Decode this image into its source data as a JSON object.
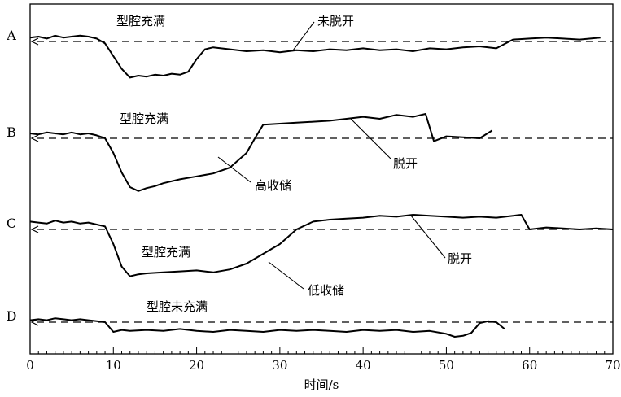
{
  "chart_data": {
    "type": "line",
    "xlabel": "时间/s",
    "xlim": [
      0,
      70
    ],
    "x_ticks": [
      "0",
      "10",
      "20",
      "30",
      "40",
      "50",
      "60",
      "70"
    ],
    "grid": false,
    "series": [
      {
        "name": "A",
        "x": [
          0,
          1,
          2,
          3,
          4,
          5,
          6,
          7,
          8,
          9,
          10,
          11,
          12,
          13,
          14,
          15,
          16,
          17,
          18,
          19,
          20,
          21,
          22,
          24,
          26,
          28,
          30,
          32,
          34,
          36,
          38,
          40,
          42,
          44,
          46,
          48,
          50,
          52,
          54,
          56,
          58,
          60,
          62,
          64,
          66,
          68.5
        ],
        "y": [
          0.4,
          0.5,
          0.3,
          0.6,
          0.4,
          0.5,
          0.6,
          0.5,
          0.3,
          -0.2,
          -1.5,
          -2.8,
          -3.7,
          -3.5,
          -3.6,
          -3.4,
          -3.5,
          -3.3,
          -3.4,
          -3.1,
          -1.8,
          -0.8,
          -0.6,
          -0.8,
          -1.0,
          -0.9,
          -1.1,
          -0.9,
          -1.0,
          -0.8,
          -0.9,
          -0.7,
          -0.9,
          -0.8,
          -1.0,
          -0.7,
          -0.8,
          -0.6,
          -0.5,
          -0.7,
          0.2,
          0.3,
          0.4,
          0.3,
          0.2,
          0.4
        ]
      },
      {
        "name": "B",
        "x": [
          0,
          1,
          2,
          3,
          4,
          5,
          6,
          7,
          8,
          9,
          10,
          11,
          12,
          13,
          14,
          15,
          16,
          18,
          20,
          22,
          24,
          26,
          27,
          28,
          30,
          32,
          34,
          36,
          38,
          40,
          42,
          44,
          46,
          47.5,
          48.5,
          50,
          52,
          54,
          55.5
        ],
        "y": [
          0.5,
          0.4,
          0.6,
          0.5,
          0.4,
          0.6,
          0.4,
          0.5,
          0.3,
          0.0,
          -1.5,
          -3.5,
          -5.0,
          -5.4,
          -5.1,
          -4.9,
          -4.6,
          -4.2,
          -3.9,
          -3.6,
          -3.0,
          -1.5,
          0.0,
          1.4,
          1.5,
          1.6,
          1.7,
          1.8,
          2.0,
          2.2,
          2.0,
          2.4,
          2.2,
          2.5,
          -0.3,
          0.2,
          0.1,
          0.0,
          0.8
        ]
      },
      {
        "name": "C",
        "x": [
          0,
          1,
          2,
          3,
          4,
          5,
          6,
          7,
          8,
          9,
          10,
          11,
          12,
          13,
          14,
          16,
          18,
          20,
          22,
          24,
          26,
          28,
          30,
          32,
          34,
          36,
          38,
          40,
          42,
          44,
          46,
          48,
          50,
          52,
          54,
          56,
          58,
          59,
          60,
          62,
          64,
          66,
          68,
          70
        ],
        "y": [
          0.8,
          0.7,
          0.6,
          0.9,
          0.7,
          0.8,
          0.6,
          0.7,
          0.5,
          0.3,
          -1.5,
          -3.8,
          -4.8,
          -4.6,
          -4.5,
          -4.4,
          -4.3,
          -4.2,
          -4.4,
          -4.1,
          -3.5,
          -2.5,
          -1.5,
          0.0,
          0.8,
          1.0,
          1.1,
          1.2,
          1.4,
          1.3,
          1.5,
          1.4,
          1.3,
          1.2,
          1.3,
          1.2,
          1.4,
          1.5,
          0.0,
          0.2,
          0.1,
          0.0,
          0.1,
          0.0
        ]
      },
      {
        "name": "D",
        "x": [
          0,
          1,
          2,
          3,
          4,
          5,
          6,
          7,
          8,
          9,
          10,
          11,
          12,
          14,
          16,
          18,
          20,
          22,
          24,
          26,
          28,
          30,
          32,
          34,
          36,
          38,
          40,
          42,
          44,
          46,
          48,
          50,
          51,
          52,
          53,
          54,
          55,
          56,
          57
        ],
        "y": [
          0.2,
          0.3,
          0.2,
          0.4,
          0.3,
          0.2,
          0.3,
          0.2,
          0.1,
          0.0,
          -1.0,
          -0.8,
          -0.9,
          -0.8,
          -0.9,
          -0.7,
          -0.9,
          -1.0,
          -0.8,
          -0.9,
          -1.0,
          -0.8,
          -0.9,
          -0.8,
          -0.9,
          -1.0,
          -0.8,
          -0.9,
          -0.8,
          -1.0,
          -0.9,
          -1.2,
          -1.5,
          -1.4,
          -1.1,
          -0.1,
          0.1,
          0.0,
          -0.7
        ]
      }
    ],
    "annotations": [
      {
        "text": "型腔充满",
        "panel": "A"
      },
      {
        "text": "未脱开",
        "panel": "A"
      },
      {
        "text": "型腔充满",
        "panel": "B"
      },
      {
        "text": "高收储",
        "panel": "B"
      },
      {
        "text": "脱开",
        "panel": "B"
      },
      {
        "text": "型腔充满",
        "panel": "C"
      },
      {
        "text": "脱开",
        "panel": "C"
      },
      {
        "text": "低收储",
        "panel": "C"
      },
      {
        "text": "型腔未充满",
        "panel": "D"
      }
    ]
  }
}
